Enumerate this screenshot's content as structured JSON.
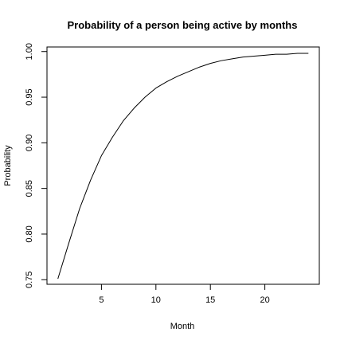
{
  "chart_data": {
    "type": "line",
    "title": "Probability of a person being active by months",
    "xlabel": "Month",
    "ylabel": "Probability",
    "xlim": [
      0,
      25
    ],
    "ylim": [
      0.745,
      1.005
    ],
    "x_ticks": [
      5,
      10,
      15,
      20
    ],
    "x_tick_labels": [
      "5",
      "10",
      "15",
      "20"
    ],
    "y_ticks": [
      0.75,
      0.8,
      0.85,
      0.9,
      0.95,
      1.0
    ],
    "y_tick_labels": [
      "0.75",
      "0.80",
      "0.85",
      "0.90",
      "0.95",
      "1.00"
    ],
    "grid": false,
    "line_color": "#000000",
    "series": [
      {
        "x": [
          1,
          2,
          3,
          4,
          5,
          6,
          7,
          8,
          9,
          10,
          11,
          12,
          13,
          14,
          15,
          16,
          17,
          18,
          19,
          20,
          21,
          22,
          23,
          24
        ],
        "values": [
          0.751,
          0.79,
          0.828,
          0.859,
          0.886,
          0.906,
          0.924,
          0.938,
          0.95,
          0.96,
          0.967,
          0.973,
          0.978,
          0.983,
          0.987,
          0.99,
          0.992,
          0.994,
          0.995,
          0.996,
          0.997,
          0.997,
          0.998,
          0.998
        ]
      }
    ]
  }
}
